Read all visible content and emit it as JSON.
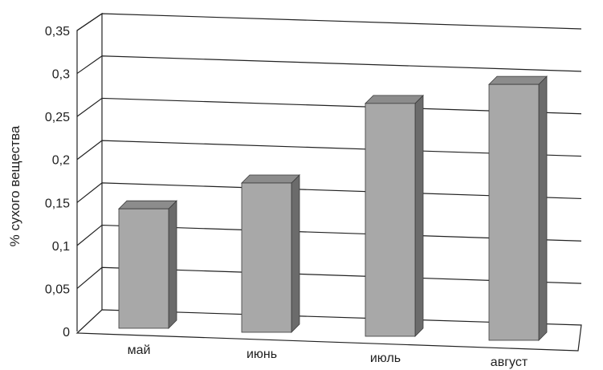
{
  "chart_data": {
    "type": "bar",
    "title": "",
    "xlabel": "",
    "ylabel": "% сухого вещества",
    "categories": [
      "май",
      "июнь",
      "июль",
      "август"
    ],
    "series": [
      {
        "values": [
          0.14,
          0.175,
          0.273,
          0.3
        ]
      }
    ],
    "ylim": [
      0,
      0.35
    ],
    "yticks": [
      "0",
      "0,05",
      "0,1",
      "0,15",
      "0,2",
      "0,25",
      "0,3",
      "0,35"
    ],
    "grid": true,
    "legend": "none",
    "style": "3d-perspective",
    "colors": {
      "bar_front": "#a8a8a8",
      "bar_side": "#6b6b6b",
      "bar_top": "#8c8c8c",
      "grid": "#222222"
    }
  }
}
